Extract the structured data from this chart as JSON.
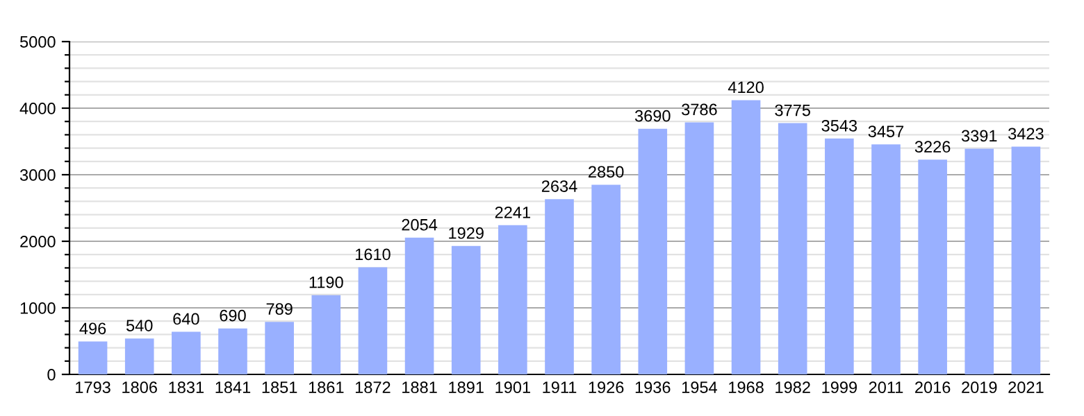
{
  "chart_data": {
    "type": "bar",
    "categories": [
      "1793",
      "1806",
      "1831",
      "1841",
      "1851",
      "1861",
      "1872",
      "1881",
      "1891",
      "1901",
      "1911",
      "1926",
      "1936",
      "1954",
      "1968",
      "1982",
      "1999",
      "2011",
      "2016",
      "2019",
      "2021"
    ],
    "values": [
      496,
      540,
      640,
      690,
      789,
      1190,
      1610,
      2054,
      1929,
      2241,
      2634,
      2850,
      3690,
      3786,
      4120,
      3775,
      3543,
      3457,
      3226,
      3391,
      3423
    ],
    "color": "#99b0ff",
    "data_labels": true,
    "ylim": [
      0,
      5000
    ],
    "yticks": [
      0,
      {
        "value": 200,
        "label": null
      },
      {
        "value": 400,
        "label": null
      },
      {
        "value": 600,
        "label": null
      },
      {
        "value": 800,
        "label": null
      },
      1000,
      {
        "value": 1200,
        "label": null
      },
      {
        "value": 1400,
        "label": null
      },
      {
        "value": 1600,
        "label": null
      },
      {
        "value": 1800,
        "label": null
      },
      2000,
      {
        "value": 2200,
        "label": null
      },
      {
        "value": 2400,
        "label": null
      },
      {
        "value": 2600,
        "label": null
      },
      {
        "value": 2800,
        "label": null
      },
      3000,
      {
        "value": 3200,
        "label": null
      },
      {
        "value": 3400,
        "label": null
      },
      {
        "value": 3600,
        "label": null
      },
      {
        "value": 3800,
        "label": null
      },
      4000,
      {
        "value": 4200,
        "label": null
      },
      {
        "value": 4400,
        "label": null
      },
      {
        "value": 4600,
        "label": null
      },
      {
        "value": 4800,
        "label": null
      },
      5000
    ],
    "grid": "y"
  }
}
